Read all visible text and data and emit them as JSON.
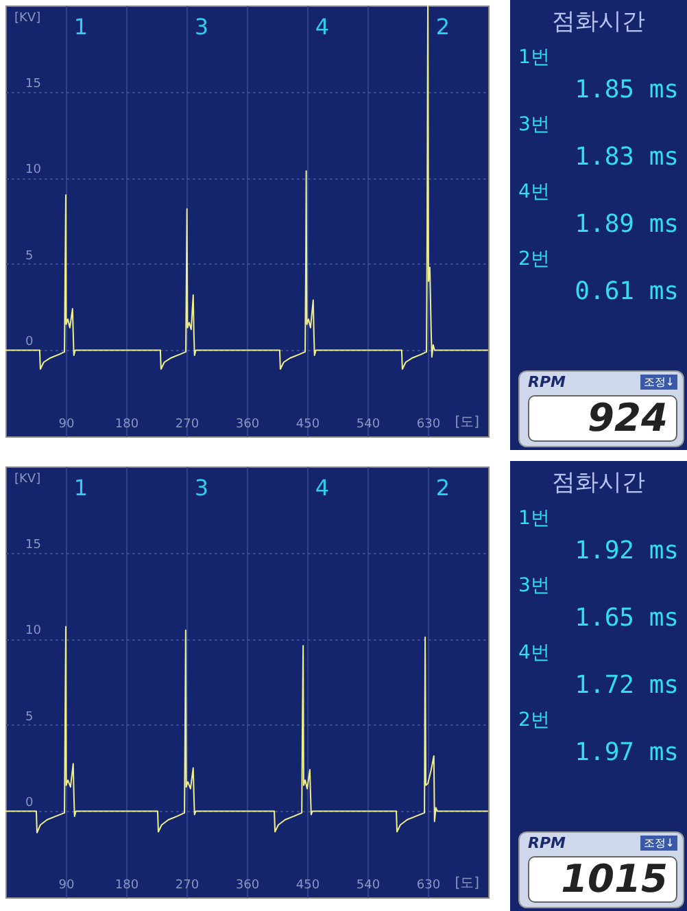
{
  "chart_data": [
    {
      "type": "line",
      "xlabel": "[도]",
      "ylabel": "[KV]",
      "xlim": [
        0,
        720
      ],
      "ylim": [
        -5,
        20
      ],
      "xticks": [
        90,
        180,
        270,
        360,
        450,
        540,
        630
      ],
      "yticks": [
        0,
        5,
        10,
        15
      ],
      "grid": true,
      "annotations": [
        "1",
        "3",
        "4",
        "2"
      ],
      "series": [
        {
          "color": "#eeee8c",
          "x": [
            0,
            51,
            52,
            57,
            67,
            80,
            88,
            89,
            90,
            90.5,
            93,
            96,
            100,
            101,
            102,
            104,
            231,
            232,
            237,
            247,
            260,
            269,
            270,
            270.7,
            271.5,
            274,
            277,
            280,
            281,
            282,
            284,
            409,
            410,
            415,
            425,
            438,
            447,
            448,
            448.6,
            449.5,
            452,
            455,
            459,
            460,
            461,
            463,
            591,
            592,
            597,
            607,
            620,
            628,
            629,
            630,
            631,
            633,
            635,
            636,
            638,
            640,
            720
          ],
          "values": [
            0,
            0,
            -1.1,
            -0.7,
            -0.45,
            -0.25,
            -0.1,
            4.5,
            9.0,
            1.5,
            1.8,
            1.3,
            2.4,
            1.0,
            -0.3,
            0,
            0,
            -1.1,
            -0.7,
            -0.45,
            -0.25,
            -0.1,
            4.7,
            8.2,
            1.3,
            1.6,
            1.2,
            3.2,
            1.0,
            -0.3,
            0,
            0,
            -1.1,
            -0.7,
            -0.45,
            -0.25,
            -0.1,
            5.0,
            10.4,
            1.5,
            1.8,
            1.3,
            2.9,
            1.0,
            -0.3,
            0,
            0,
            -1.1,
            -0.7,
            -0.45,
            -0.25,
            -0.1,
            6.9,
            20,
            4.0,
            4.8,
            1.0,
            -0.4,
            0.3,
            0,
            0
          ]
        }
      ]
    },
    {
      "type": "other",
      "title": "점화시간",
      "annotations": [
        "1번",
        "1.85 ms",
        "3번",
        "1.83 ms",
        "4번",
        "1.89 ms",
        "2번",
        "0.61 ms",
        "RPM",
        "조정↓",
        "924"
      ]
    },
    {
      "type": "line",
      "xlabel": "[도]",
      "ylabel": "[KV]",
      "xlim": [
        0,
        720
      ],
      "ylim": [
        -5,
        20
      ],
      "xticks": [
        90,
        180,
        270,
        360,
        450,
        540,
        630
      ],
      "yticks": [
        0,
        5,
        10,
        15
      ],
      "grid": true,
      "annotations": [
        "1",
        "3",
        "4",
        "2"
      ],
      "series": [
        {
          "color": "#eeee8c",
          "x": [
            0,
            46,
            47,
            52,
            62,
            75,
            88,
            89,
            90,
            90.6,
            93,
            97,
            101,
            102,
            103,
            105,
            227,
            228,
            233,
            243,
            256,
            267,
            268,
            268.8,
            269.6,
            272,
            276,
            280,
            281,
            282,
            284,
            401,
            402,
            407,
            417,
            430,
            442,
            443,
            444,
            444.8,
            447,
            450,
            454,
            455,
            456,
            458,
            583,
            584,
            589,
            599,
            612,
            625,
            625.5,
            626,
            627,
            630,
            635,
            639,
            640,
            642,
            644,
            720
          ],
          "values": [
            0,
            0,
            -1.25,
            -0.8,
            -0.5,
            -0.3,
            -0.1,
            5.3,
            10.7,
            1.5,
            1.8,
            1.4,
            2.75,
            1.0,
            -0.3,
            0,
            0,
            -1.2,
            -0.8,
            -0.5,
            -0.3,
            -0.1,
            5.3,
            10.5,
            1.4,
            1.7,
            1.3,
            2.5,
            1.0,
            -0.2,
            0,
            0,
            -1.2,
            -0.8,
            -0.5,
            -0.3,
            -0.1,
            5.5,
            9.6,
            1.5,
            1.8,
            1.3,
            2.4,
            1.0,
            -0.2,
            0,
            0,
            -1.2,
            -0.8,
            -0.5,
            -0.3,
            -0.1,
            5.2,
            10.1,
            1.5,
            1.6,
            2.4,
            3.2,
            -0.6,
            0.2,
            0,
            0
          ]
        }
      ]
    },
    {
      "type": "other",
      "title": "점화시간",
      "annotations": [
        "1번",
        "1.92 ms",
        "3번",
        "1.65 ms",
        "4번",
        "1.72 ms",
        "2번",
        "1.97 ms",
        "RPM",
        "조정↓",
        "1015"
      ]
    }
  ]
}
